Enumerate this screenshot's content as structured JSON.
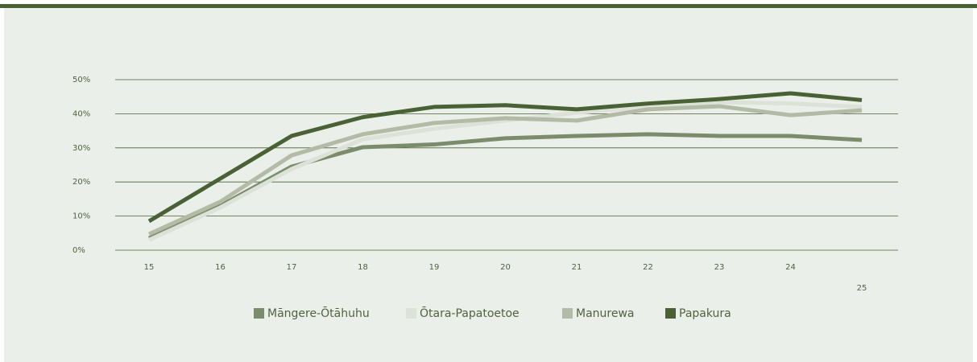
{
  "chart_data": {
    "type": "line",
    "categories": [
      "15",
      "16",
      "17",
      "18",
      "19",
      "20",
      "21",
      "22",
      "23",
      "24",
      "25"
    ],
    "series": [
      {
        "name": "Māngere-Ōtāhuhu",
        "color": "#7b8c6c",
        "values": [
          3.5,
          13,
          24.5,
          30.2,
          31,
          32.8,
          33.5,
          34,
          33.5,
          33.5,
          32.3
        ]
      },
      {
        "name": "Ōtara-Papatoetoe",
        "color": "#dde2d8",
        "values": [
          3,
          12.5,
          23.8,
          32.5,
          35.6,
          38,
          40.3,
          42,
          43.4,
          43,
          42
        ]
      },
      {
        "name": "Manurewa",
        "color": "#b3baa6",
        "values": [
          4.7,
          14.2,
          27.8,
          34,
          37.3,
          38.7,
          38,
          41.3,
          42.2,
          39.6,
          41
        ]
      },
      {
        "name": "Papakura",
        "color": "#4a6135",
        "values": [
          8.5,
          21,
          33.5,
          39,
          42,
          42.5,
          41.3,
          43,
          44.3,
          46,
          44
        ]
      }
    ],
    "ylim": [
      0,
      50
    ],
    "yticks": [
      {
        "value": 0,
        "label": "0%"
      },
      {
        "value": 10,
        "label": "10%"
      },
      {
        "value": 20,
        "label": "20%"
      },
      {
        "value": 30,
        "label": "30%"
      },
      {
        "value": 40,
        "label": "40%"
      },
      {
        "value": 50,
        "label": "50%"
      }
    ],
    "grid": true,
    "legend": "bottom"
  }
}
